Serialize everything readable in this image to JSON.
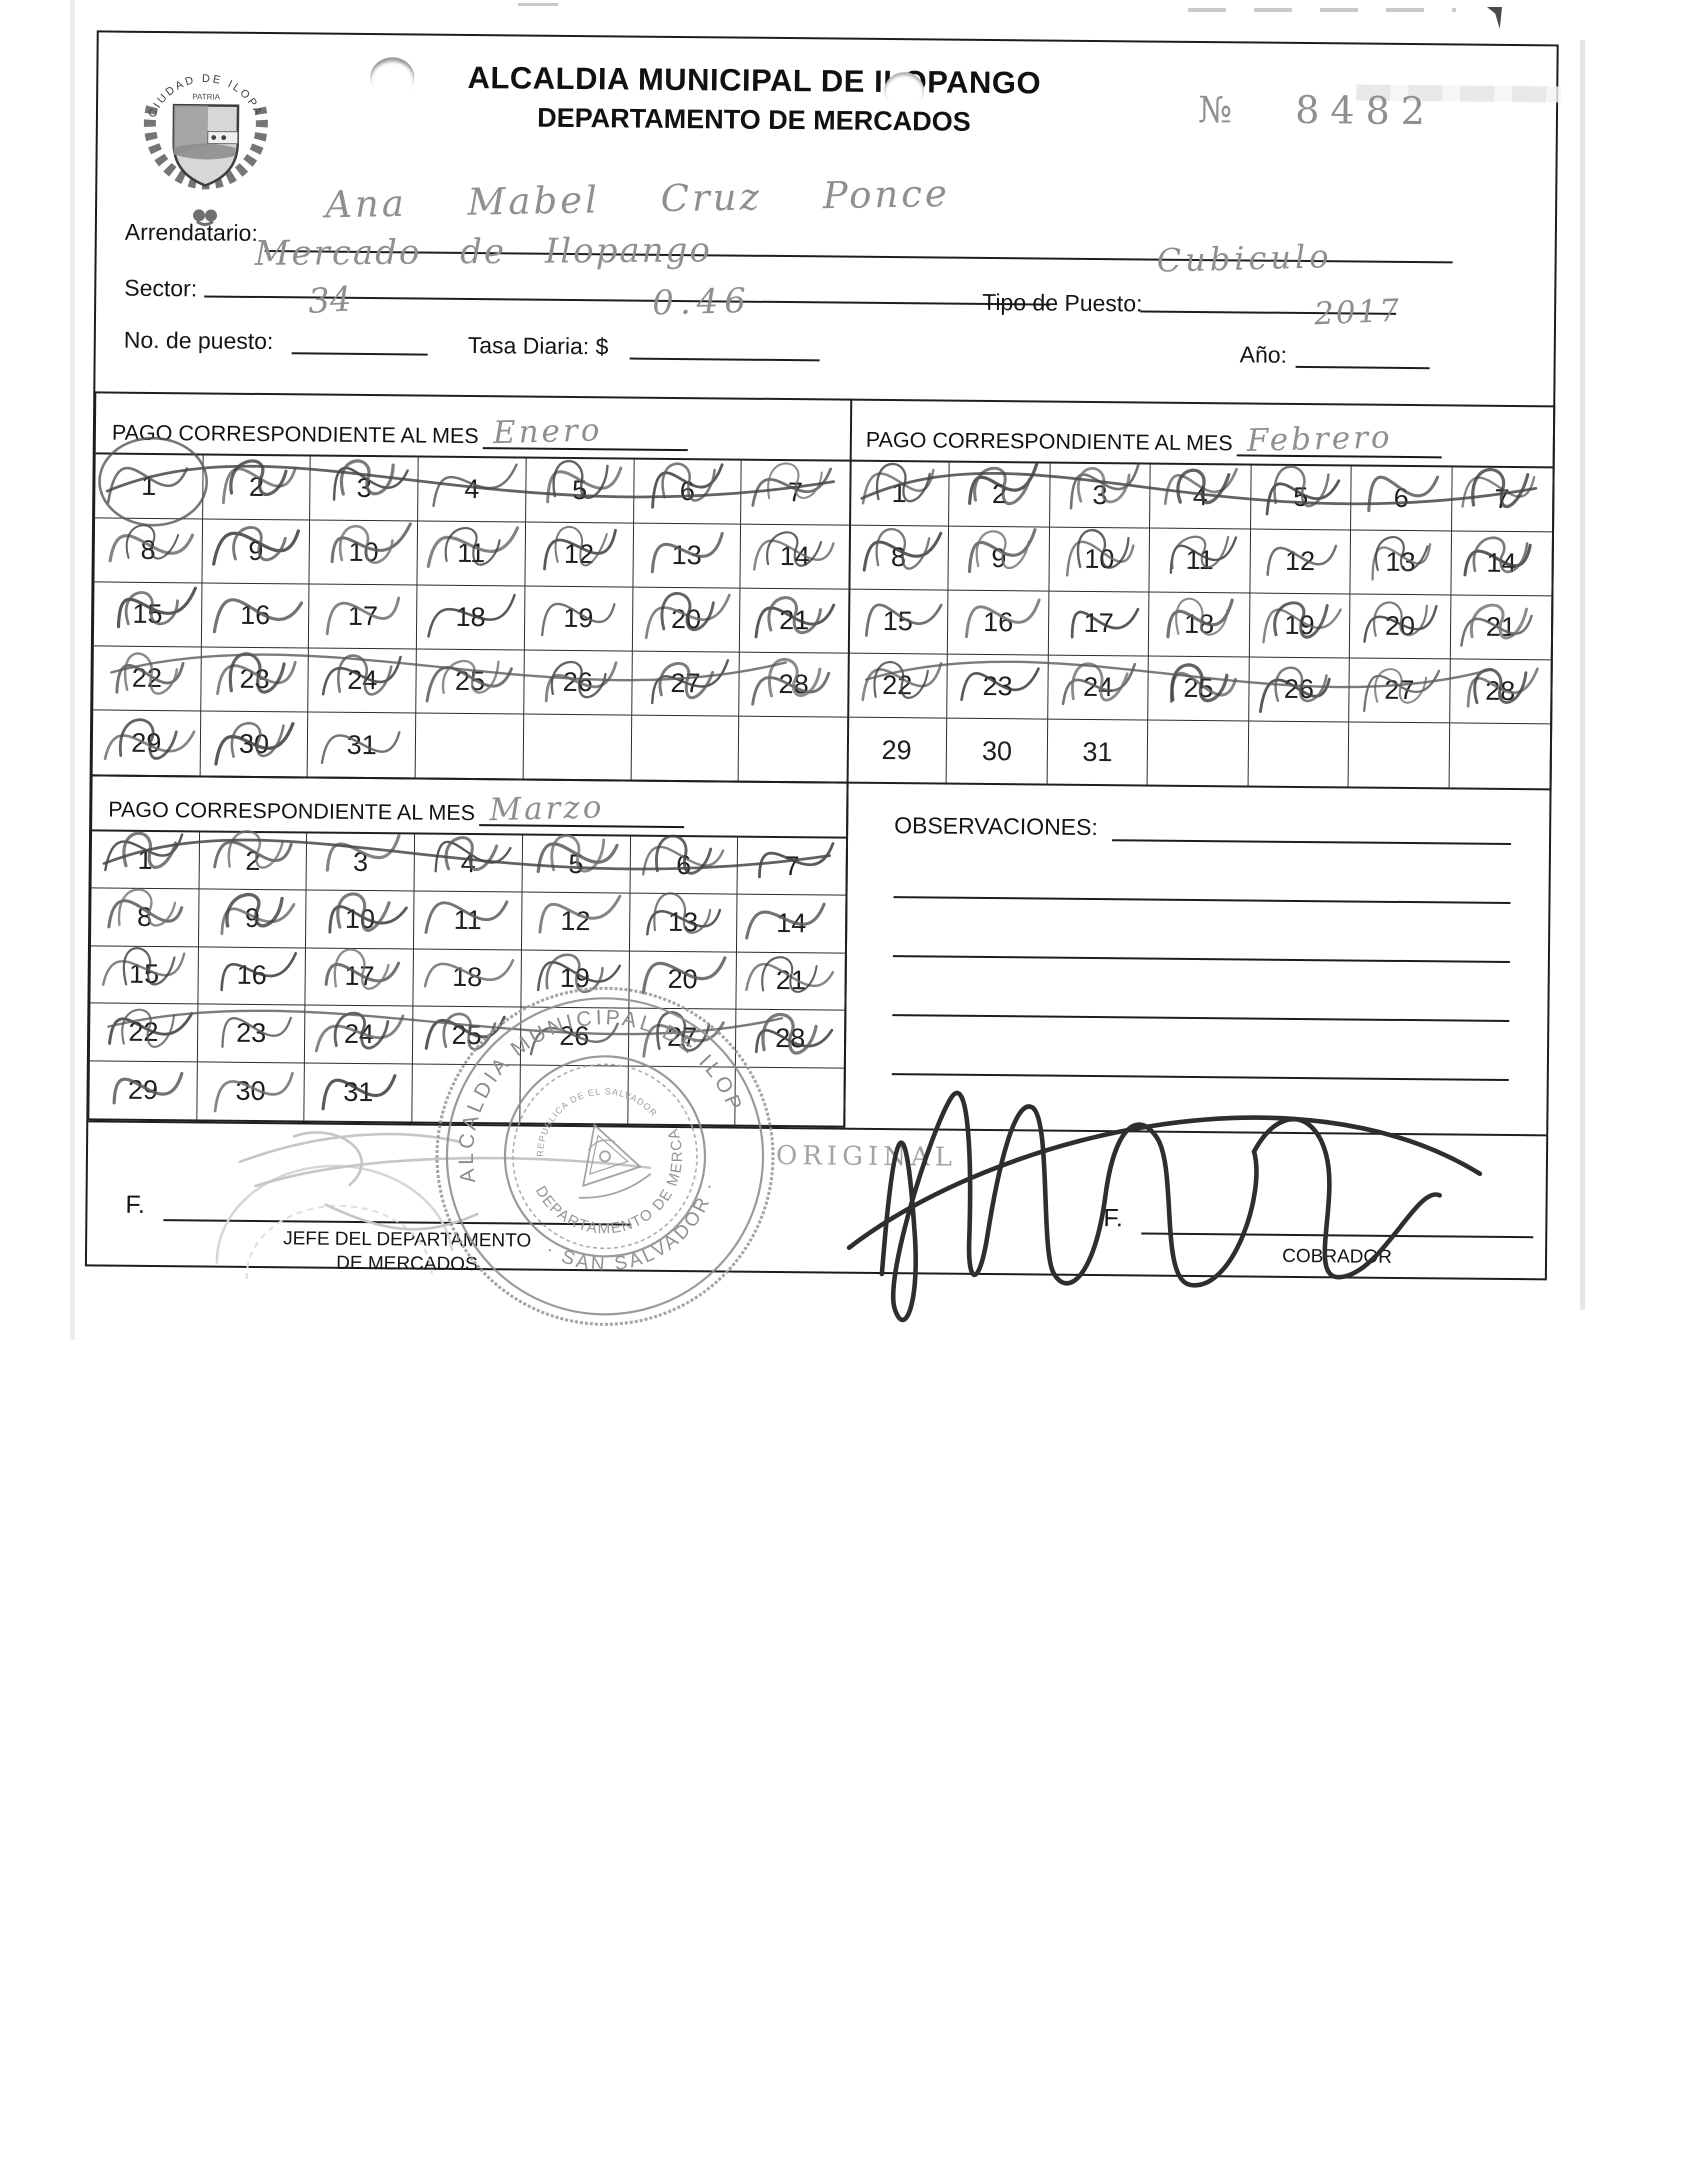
{
  "page": {
    "header": {
      "title": "ALCALDIA MUNICIPAL DE ILOPANGO",
      "subtitle": "DEPARTAMENTO DE MERCADOS",
      "number_label": "№",
      "number": "8482",
      "seal_top_text": "CIUDAD DE ILOPANGO",
      "seal_motto": "PATRIA"
    },
    "fields": {
      "arrendatario": {
        "label": "Arrendatario:",
        "value": "Ana Mabel Cruz Ponce"
      },
      "sector": {
        "label": "Sector:",
        "value": "Mercado de Ilopango"
      },
      "tipo_puesto": {
        "label": "Tipo de Puesto:",
        "value": "Cubiculo"
      },
      "no_puesto": {
        "label": "No. de puesto:",
        "value": "34"
      },
      "tasa_diaria": {
        "label": "Tasa Diaria: $",
        "value": "0.46"
      },
      "anio": {
        "label": "Año:",
        "value": "2017"
      }
    },
    "calendars": [
      {
        "label": "PAGO CORRESPONDIENTE AL MES",
        "month": "Enero",
        "day_numbers": [
          1,
          2,
          3,
          4,
          5,
          6,
          7,
          8,
          9,
          10,
          11,
          12,
          13,
          14,
          15,
          16,
          17,
          18,
          19,
          20,
          21,
          22,
          23,
          24,
          25,
          26,
          27,
          28,
          29,
          30,
          31
        ],
        "marked_days": [
          1,
          2,
          3,
          4,
          5,
          6,
          7,
          8,
          9,
          10,
          11,
          12,
          13,
          14,
          15,
          16,
          17,
          18,
          19,
          20,
          21,
          22,
          23,
          24,
          25,
          26,
          27,
          28,
          29,
          30,
          31
        ]
      },
      {
        "label": "PAGO CORRESPONDIENTE AL MES",
        "month": "Febrero",
        "day_numbers": [
          1,
          2,
          3,
          4,
          5,
          6,
          7,
          8,
          9,
          10,
          11,
          12,
          13,
          14,
          15,
          16,
          17,
          18,
          19,
          20,
          21,
          22,
          23,
          24,
          25,
          26,
          27,
          28,
          29,
          30,
          31
        ],
        "marked_days": [
          1,
          2,
          3,
          4,
          5,
          6,
          7,
          8,
          9,
          10,
          11,
          12,
          13,
          14,
          15,
          16,
          17,
          18,
          19,
          20,
          21,
          22,
          23,
          24,
          25,
          26,
          27,
          28
        ]
      },
      {
        "label": "PAGO CORRESPONDIENTE AL MES",
        "month": "Marzo",
        "day_numbers": [
          1,
          2,
          3,
          4,
          5,
          6,
          7,
          8,
          9,
          10,
          11,
          12,
          13,
          14,
          15,
          16,
          17,
          18,
          19,
          20,
          21,
          22,
          23,
          24,
          25,
          26,
          27,
          28,
          29,
          30,
          31
        ],
        "marked_days": [
          1,
          2,
          3,
          4,
          5,
          6,
          7,
          8,
          9,
          10,
          11,
          12,
          13,
          14,
          15,
          16,
          17,
          18,
          19,
          20,
          21,
          22,
          23,
          24,
          25,
          26,
          27,
          28,
          29,
          30,
          31
        ]
      }
    ],
    "observaciones": {
      "label": "OBSERVACIONES:",
      "lines": 4,
      "value": ""
    },
    "footer": {
      "copy_type": "ORIGINAL",
      "left_sig_label": "F.",
      "left_sig_caption_1": "JEFE DEL DEPARTAMENTO",
      "left_sig_caption_2": "DE MERCADOS",
      "right_sig_label": "F.",
      "right_sig_caption": "COBRADOR"
    },
    "stamp": {
      "outer_text": "ALCALDIA MUNICIPAL DE ILOPANGO",
      "outer_text_bottom": "· SAN SALVADOR ·",
      "inner_text": "DEPARTAMENTO DE MERCADOS",
      "emblem_text": "REPUBLICA DE EL SALVADOR"
    },
    "colors": {
      "ink": "#1c1c1c",
      "pencil": "#8f8f8f",
      "stamp": "#8a8a8a"
    }
  }
}
